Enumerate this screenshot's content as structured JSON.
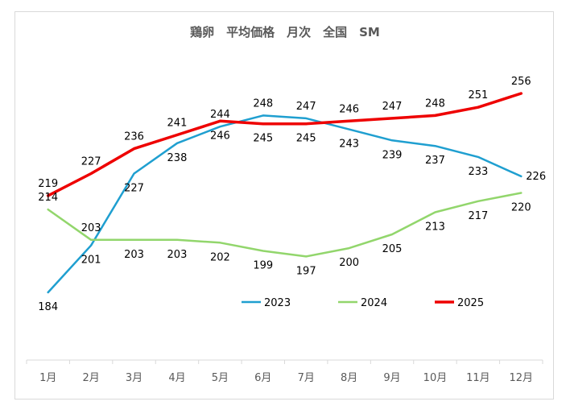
{
  "chart_data": {
    "type": "line",
    "title": "鶏卵　平均価格　月次　全国　SM",
    "categories": [
      "1月",
      "2月",
      "3月",
      "4月",
      "5月",
      "6月",
      "7月",
      "8月",
      "9月",
      "10月",
      "11月",
      "12月"
    ],
    "series": [
      {
        "name": "2023",
        "color": "#1f9fd0",
        "values": [
          184,
          201,
          227,
          238,
          244,
          248,
          247,
          243,
          239,
          237,
          233,
          226
        ]
      },
      {
        "name": "2024",
        "color": "#92d66c",
        "values": [
          214,
          203,
          203,
          203,
          202,
          199,
          197,
          200,
          205,
          213,
          217,
          220
        ]
      },
      {
        "name": "2025",
        "color": "#ee0000",
        "values": [
          219,
          227,
          236,
          241,
          246,
          245,
          245,
          246,
          247,
          248,
          251,
          256
        ]
      }
    ],
    "xlabel": "",
    "ylabel": "",
    "grid": false,
    "legend_position": "bottom-center"
  }
}
